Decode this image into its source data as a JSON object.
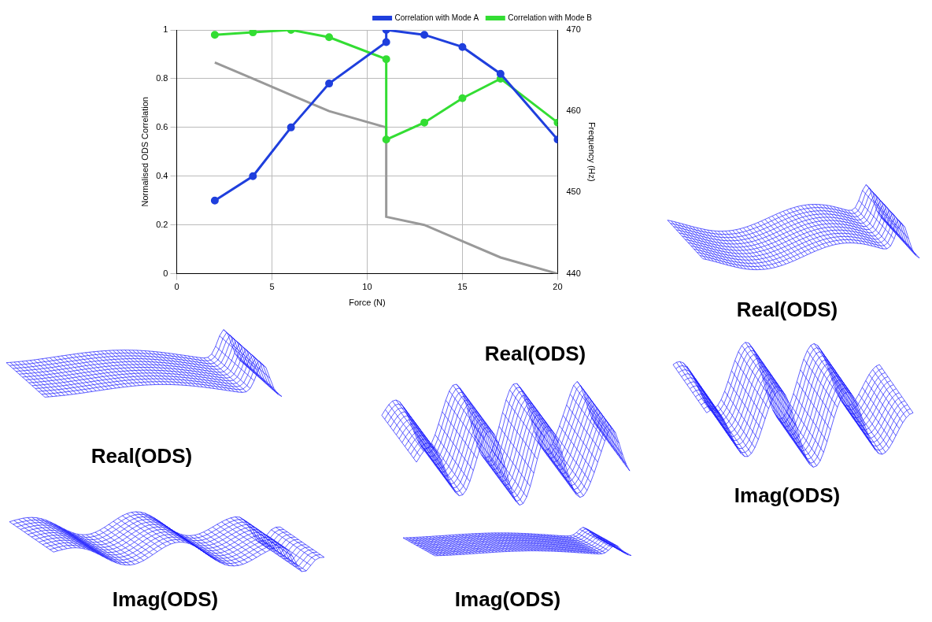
{
  "chart_data": {
    "type": "line",
    "x_label": "Force (N)",
    "y_label": "Normalised ODS Correlation",
    "y2_label": "Frequency (Hz)",
    "x": [
      2,
      4,
      6,
      8,
      11,
      11,
      13,
      15,
      17,
      20
    ],
    "series": [
      {
        "name": "Correlation with Mode A",
        "color": "#1f3fdd",
        "marker": "circle",
        "values": [
          0.3,
          0.4,
          0.6,
          0.78,
          0.95,
          1.0,
          0.98,
          0.93,
          0.82,
          0.55
        ]
      },
      {
        "name": "Correlation with Mode B",
        "color": "#33dd33",
        "marker": "circle",
        "values": [
          0.98,
          0.99,
          1.0,
          0.97,
          0.88,
          0.55,
          0.62,
          0.72,
          0.8,
          0.62
        ]
      },
      {
        "color": "#999999",
        "axis": "y2",
        "marker": "none",
        "values": [
          466,
          464,
          462,
          460,
          458,
          447,
          446,
          444,
          442,
          440
        ]
      }
    ],
    "xlim": [
      0,
      20
    ],
    "xticks": [
      0,
      5,
      10,
      15,
      20
    ],
    "ylim": [
      0,
      1
    ],
    "yticks": [
      0,
      0.2,
      0.4,
      0.6,
      0.8,
      1
    ],
    "y2lim": [
      440,
      470
    ],
    "y2ticks": [
      440,
      450,
      460,
      470
    ],
    "grid": true,
    "legend": "upper right"
  },
  "insets": [
    {
      "real_label": "Real(ODS)",
      "imag_label": "Imag(ODS)"
    },
    {
      "real_label": "Real(ODS)",
      "imag_label": "Imag(ODS)"
    },
    {
      "real_label": "Real(ODS)",
      "imag_label": "Imag(ODS)"
    }
  ]
}
